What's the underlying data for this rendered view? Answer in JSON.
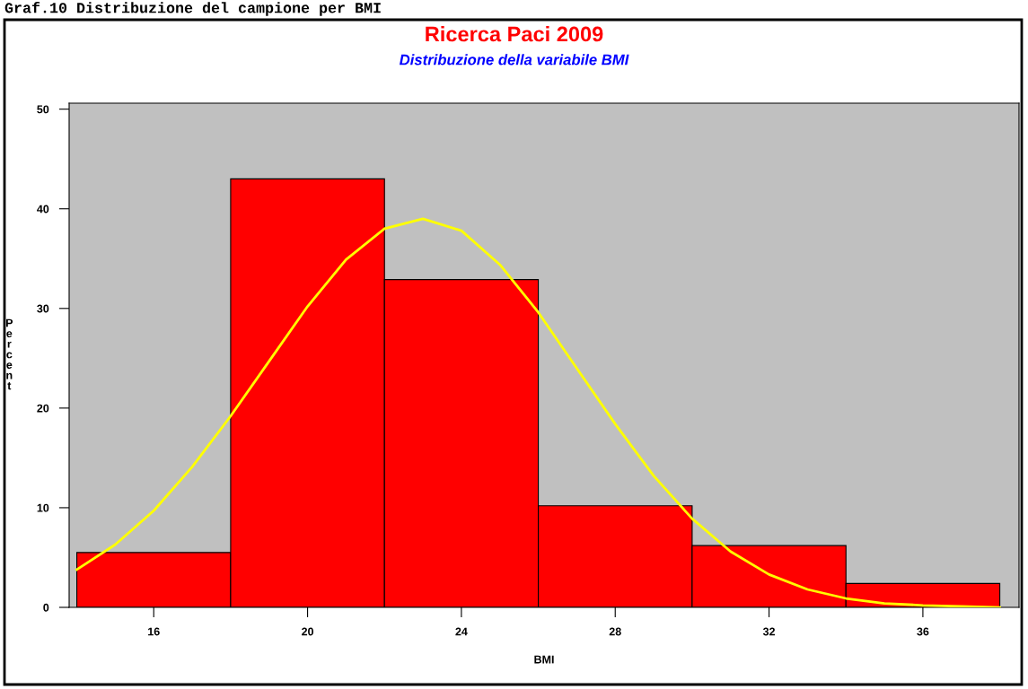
{
  "chart_data": {
    "type": "histogram",
    "title": "Ricerca Paci 2009",
    "subtitle": "Distribuzione della variabile BMI",
    "annotations": [
      "Graf.10 Distribuzione del campione per BMI"
    ],
    "xlabel": "BMI",
    "ylabel": "Percent",
    "bins": [
      14,
      18,
      22,
      26,
      30,
      34,
      38
    ],
    "series": [
      {
        "color": "#ff0000",
        "values": [
          5.5,
          43.0,
          32.9,
          10.2,
          6.2,
          2.4
        ]
      },
      {
        "type": "line",
        "color": "#ffff00",
        "x": [
          14,
          15,
          16,
          17,
          18,
          19,
          20,
          21,
          22,
          23,
          24,
          25,
          26,
          27,
          28,
          29,
          30,
          31,
          32,
          33,
          34,
          35,
          36,
          37,
          38
        ],
        "values": [
          3.8,
          6.3,
          9.7,
          14.1,
          19.2,
          24.7,
          30.2,
          34.9,
          38.0,
          39.0,
          37.8,
          34.4,
          29.6,
          24.0,
          18.4,
          13.2,
          8.9,
          5.6,
          3.3,
          1.8,
          0.9,
          0.4,
          0.2,
          0.1,
          0.0
        ]
      }
    ],
    "xlim": [
      13.8,
      38.5
    ],
    "xticks": [
      16,
      20,
      24,
      28,
      32,
      36
    ],
    "ylim": [
      0,
      50.6
    ],
    "yticks": [
      0,
      10,
      20,
      30,
      40,
      50
    ],
    "grid": false,
    "legend": false
  }
}
